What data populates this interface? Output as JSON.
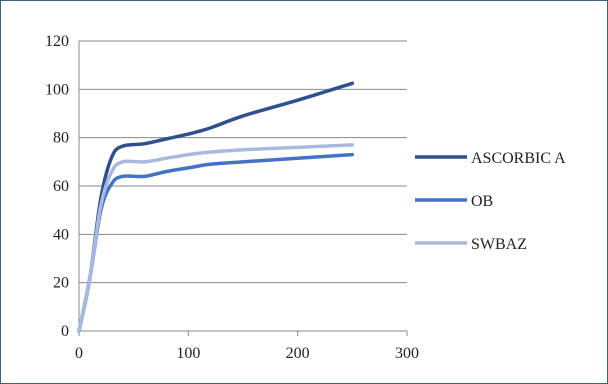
{
  "chart_data": {
    "type": "line",
    "title": "",
    "xlabel": "",
    "ylabel": "",
    "xlim": [
      0,
      300
    ],
    "ylim": [
      0,
      120
    ],
    "x_ticks": [
      "0",
      "100",
      "200",
      "300"
    ],
    "y_ticks": [
      "0",
      "20",
      "40",
      "60",
      "80",
      "100",
      "120"
    ],
    "grid": "horizontal",
    "legend_position": "right",
    "series": [
      {
        "name": "ASCORBIC A",
        "color": "#2f4f8f",
        "points": [
          [
            0,
            0
          ],
          [
            10,
            22
          ],
          [
            20,
            55
          ],
          [
            30,
            72
          ],
          [
            40,
            76.5
          ],
          [
            60,
            77.5
          ],
          [
            80,
            79.5
          ],
          [
            100,
            81.5
          ],
          [
            120,
            84
          ],
          [
            150,
            89
          ],
          [
            200,
            95.5
          ],
          [
            250,
            102.5
          ]
        ]
      },
      {
        "name": "OB",
        "color": "#4472c4",
        "points": [
          [
            0,
            0
          ],
          [
            10,
            22
          ],
          [
            20,
            50
          ],
          [
            30,
            61
          ],
          [
            40,
            64
          ],
          [
            60,
            64
          ],
          [
            80,
            66
          ],
          [
            100,
            67.5
          ],
          [
            120,
            69
          ],
          [
            150,
            70
          ],
          [
            200,
            71.5
          ],
          [
            250,
            73
          ]
        ]
      },
      {
        "name": "SWBAZ",
        "color": "#a9b8e0",
        "points": [
          [
            0,
            0
          ],
          [
            10,
            22
          ],
          [
            20,
            52
          ],
          [
            30,
            66
          ],
          [
            40,
            70
          ],
          [
            60,
            70
          ],
          [
            80,
            71.5
          ],
          [
            100,
            73
          ],
          [
            120,
            74
          ],
          [
            150,
            75
          ],
          [
            200,
            76
          ],
          [
            250,
            77
          ]
        ]
      }
    ]
  }
}
